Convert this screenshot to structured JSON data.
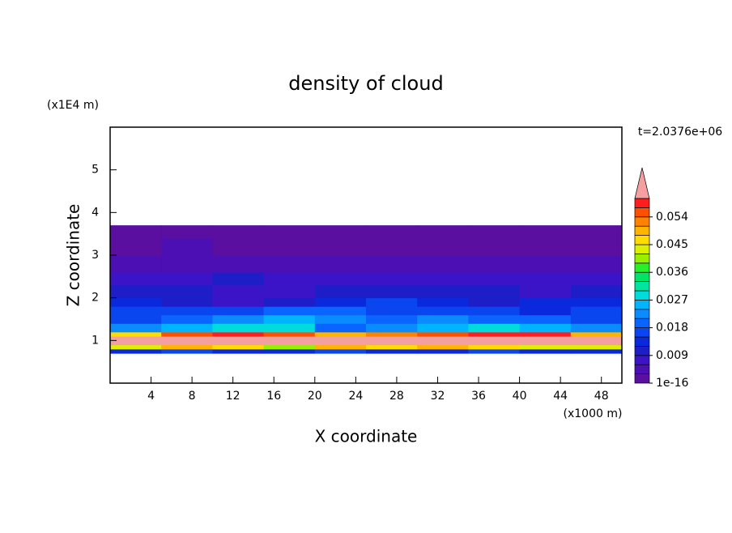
{
  "chart_data": {
    "type": "heatmap",
    "title": "density of cloud",
    "xlabel": "X coordinate",
    "ylabel": "Z coordinate",
    "x_unit": "(x1000 m)",
    "y_unit": "(x1E4 m)",
    "annotation": "t=2.0376e+06",
    "xlim": [
      0,
      50
    ],
    "ylim": [
      0,
      6
    ],
    "xticks": [
      4,
      8,
      12,
      16,
      20,
      24,
      28,
      32,
      36,
      40,
      44,
      48
    ],
    "yticks": [
      1,
      2,
      3,
      4,
      5
    ],
    "x_edges": [
      0,
      5,
      10,
      15,
      20,
      25,
      30,
      35,
      40,
      45,
      50
    ],
    "z_edges": [
      0.7,
      0.8,
      0.9,
      1.0,
      1.1,
      1.2,
      1.4,
      1.6,
      1.8,
      2.0,
      2.3,
      2.6,
      3.0,
      3.4,
      3.7
    ],
    "values": [
      [
        0.014,
        0.016,
        0.015,
        0.013,
        0.016,
        0.015,
        0.014,
        0.016,
        0.015,
        0.014
      ],
      [
        0.045,
        0.05,
        0.048,
        0.042,
        0.05,
        0.046,
        0.05,
        0.048,
        0.045,
        0.044
      ],
      [
        0.066,
        0.064,
        0.065,
        0.06,
        0.062,
        0.064,
        0.066,
        0.065,
        0.063,
        0.061
      ],
      [
        0.062,
        0.066,
        0.065,
        0.063,
        0.061,
        0.065,
        0.066,
        0.067,
        0.066,
        0.062
      ],
      [
        0.048,
        0.056,
        0.058,
        0.054,
        0.05,
        0.052,
        0.055,
        0.058,
        0.057,
        0.05
      ],
      [
        0.022,
        0.026,
        0.03,
        0.028,
        0.02,
        0.024,
        0.026,
        0.028,
        0.025,
        0.022
      ],
      [
        0.018,
        0.02,
        0.024,
        0.026,
        0.022,
        0.02,
        0.022,
        0.02,
        0.019,
        0.018
      ],
      [
        0.016,
        0.017,
        0.018,
        0.02,
        0.02,
        0.018,
        0.017,
        0.016,
        0.015,
        0.016
      ],
      [
        0.014,
        0.012,
        0.008,
        0.012,
        0.015,
        0.016,
        0.014,
        0.012,
        0.013,
        0.014
      ],
      [
        0.012,
        0.01,
        0.008,
        0.009,
        0.01,
        0.011,
        0.012,
        0.01,
        0.009,
        0.01
      ],
      [
        0.009,
        0.008,
        0.01,
        0.008,
        0.007,
        0.008,
        0.009,
        0.009,
        0.008,
        0.008
      ],
      [
        0.005,
        0.004,
        0.005,
        0.005,
        0.004,
        0.005,
        0.004,
        0.005,
        0.005,
        0.004
      ],
      [
        0.003,
        0.004,
        0.003,
        0.003,
        0.003,
        0.003,
        0.003,
        0.003,
        0.003,
        0.003
      ],
      [
        0.001,
        0.001,
        0.001,
        0.001,
        0.001,
        0.001,
        0.001,
        0.001,
        0.001,
        0.001
      ]
    ],
    "clim": [
      1e-16,
      0.06
    ],
    "cticks": [
      {
        "value": 1e-16,
        "label": "1e-16"
      },
      0.009,
      0.018,
      0.027,
      0.036,
      0.045,
      0.054
    ],
    "colors": [
      "#5a0fa0",
      "#4b0fb4",
      "#3c14c8",
      "#1e1ec8",
      "#0a28dc",
      "#0a46f0",
      "#0a64ff",
      "#0a8cff",
      "#00b4ff",
      "#00dcdc",
      "#00e6a0",
      "#00e664",
      "#28f028",
      "#96f000",
      "#dcf000",
      "#ffdc00",
      "#ffb400",
      "#ff8200",
      "#ff5000",
      "#ff1e1e"
    ],
    "over_color": "#f4a0a0"
  }
}
